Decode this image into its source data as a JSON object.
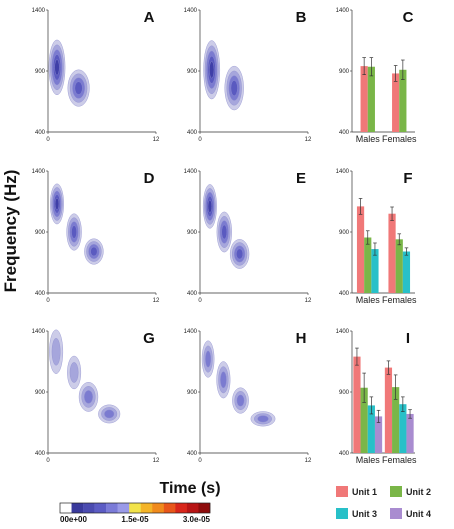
{
  "figure": {
    "ylabel": "Frequency (Hz)",
    "xlabel": "Time (s)",
    "colorbar_labels": [
      "00e+00",
      "1.5e-05",
      "3.0e-05"
    ],
    "colorbar_colors": [
      "#ffffff",
      "#3a3a9c",
      "#4b4bb0",
      "#5c5cc4",
      "#7b7bd8",
      "#9a9ae8",
      "#f2e34a",
      "#f4b428",
      "#f08a1c",
      "#e8561a",
      "#d8261a",
      "#b81414",
      "#8e0c0c"
    ],
    "contour_colors": [
      "#cccce8",
      "#a6a6dc",
      "#7b7bd0",
      "#5a5ac0",
      "#3f3fa8"
    ],
    "unit_colors": {
      "Unit 1": "#f07878",
      "Unit 2": "#7ab648",
      "Unit 3": "#28c0c8",
      "Unit 4": "#a98cd0"
    }
  },
  "legend": [
    {
      "label": "Unit 1",
      "color": "#f07878"
    },
    {
      "label": "Unit 2",
      "color": "#7ab648"
    },
    {
      "label": "Unit 3",
      "color": "#28c0c8"
    },
    {
      "label": "Unit 4",
      "color": "#a98cd0"
    }
  ],
  "chart_data": [
    {
      "panel": "A",
      "type": "heatmap",
      "xlim": [
        0,
        12
      ],
      "ylim": [
        400,
        1400
      ],
      "xticks": [
        "0",
        "12"
      ],
      "yticks": [
        "400",
        "900",
        "1400"
      ],
      "blobs": [
        {
          "t": 1.0,
          "f": 930,
          "st": 0.6,
          "sf": 150,
          "amp": 5
        },
        {
          "t": 3.4,
          "f": 760,
          "st": 0.8,
          "sf": 100,
          "amp": 4
        }
      ]
    },
    {
      "panel": "B",
      "type": "heatmap",
      "xlim": [
        0,
        12
      ],
      "ylim": [
        400,
        1400
      ],
      "xticks": [
        "0",
        "12"
      ],
      "yticks": [
        "400",
        "900",
        "1400"
      ],
      "blobs": [
        {
          "t": 1.3,
          "f": 910,
          "st": 0.6,
          "sf": 160,
          "amp": 5
        },
        {
          "t": 3.8,
          "f": 760,
          "st": 0.7,
          "sf": 120,
          "amp": 4
        }
      ]
    },
    {
      "panel": "C",
      "type": "bar",
      "categories": [
        "Males",
        "Females"
      ],
      "ylim": [
        400,
        1400
      ],
      "yticks": [
        "400",
        "900",
        "1400"
      ],
      "series": [
        {
          "name": "Unit 1",
          "values": [
            940,
            880
          ],
          "err": [
            70,
            65
          ]
        },
        {
          "name": "Unit 2",
          "values": [
            935,
            910
          ],
          "err": [
            75,
            80
          ]
        }
      ]
    },
    {
      "panel": "D",
      "type": "heatmap",
      "xlim": [
        0,
        12
      ],
      "ylim": [
        400,
        1400
      ],
      "xticks": [
        "0",
        "12"
      ],
      "yticks": [
        "400",
        "900",
        "1400"
      ],
      "blobs": [
        {
          "t": 1.0,
          "f": 1130,
          "st": 0.5,
          "sf": 110,
          "amp": 5
        },
        {
          "t": 2.9,
          "f": 900,
          "st": 0.55,
          "sf": 100,
          "amp": 4
        },
        {
          "t": 5.1,
          "f": 740,
          "st": 0.7,
          "sf": 70,
          "amp": 4
        }
      ]
    },
    {
      "panel": "E",
      "type": "heatmap",
      "xlim": [
        0,
        12
      ],
      "ylim": [
        400,
        1400
      ],
      "xticks": [
        "0",
        "12"
      ],
      "yticks": [
        "400",
        "900",
        "1400"
      ],
      "blobs": [
        {
          "t": 1.1,
          "f": 1110,
          "st": 0.5,
          "sf": 120,
          "amp": 5
        },
        {
          "t": 2.7,
          "f": 900,
          "st": 0.55,
          "sf": 110,
          "amp": 4
        },
        {
          "t": 4.4,
          "f": 720,
          "st": 0.7,
          "sf": 80,
          "amp": 4
        }
      ]
    },
    {
      "panel": "F",
      "type": "bar",
      "categories": [
        "Males",
        "Females"
      ],
      "ylim": [
        400,
        1400
      ],
      "yticks": [
        "400",
        "900",
        "1400"
      ],
      "series": [
        {
          "name": "Unit 1",
          "values": [
            1110,
            1050
          ],
          "err": [
            65,
            55
          ]
        },
        {
          "name": "Unit 2",
          "values": [
            855,
            840
          ],
          "err": [
            55,
            45
          ]
        },
        {
          "name": "Unit 3",
          "values": [
            760,
            740
          ],
          "err": [
            50,
            30
          ]
        }
      ]
    },
    {
      "panel": "G",
      "type": "heatmap",
      "xlim": [
        0,
        12
      ],
      "ylim": [
        400,
        1400
      ],
      "xticks": [
        "0",
        "12"
      ],
      "yticks": [
        "400",
        "900",
        "1400"
      ],
      "blobs": [
        {
          "t": 0.9,
          "f": 1230,
          "st": 0.5,
          "sf": 120,
          "amp": 2
        },
        {
          "t": 2.9,
          "f": 1060,
          "st": 0.5,
          "sf": 90,
          "amp": 2
        },
        {
          "t": 4.5,
          "f": 860,
          "st": 0.7,
          "sf": 80,
          "amp": 3
        },
        {
          "t": 6.8,
          "f": 720,
          "st": 0.8,
          "sf": 50,
          "amp": 3
        }
      ]
    },
    {
      "panel": "H",
      "type": "heatmap",
      "xlim": [
        0,
        12
      ],
      "ylim": [
        400,
        1400
      ],
      "xticks": [
        "0",
        "12"
      ],
      "yticks": [
        "400",
        "900",
        "1400"
      ],
      "blobs": [
        {
          "t": 0.9,
          "f": 1170,
          "st": 0.45,
          "sf": 100,
          "amp": 3
        },
        {
          "t": 2.6,
          "f": 1000,
          "st": 0.5,
          "sf": 100,
          "amp": 3
        },
        {
          "t": 4.5,
          "f": 830,
          "st": 0.6,
          "sf": 70,
          "amp": 3
        },
        {
          "t": 7.0,
          "f": 680,
          "st": 0.9,
          "sf": 40,
          "amp": 3
        }
      ]
    },
    {
      "panel": "I",
      "type": "bar",
      "categories": [
        "Males",
        "Females"
      ],
      "ylim": [
        400,
        1400
      ],
      "yticks": [
        "400",
        "900",
        "1400"
      ],
      "series": [
        {
          "name": "Unit 1",
          "values": [
            1190,
            1100
          ],
          "err": [
            70,
            55
          ]
        },
        {
          "name": "Unit 2",
          "values": [
            935,
            940
          ],
          "err": [
            120,
            100
          ]
        },
        {
          "name": "Unit 3",
          "values": [
            790,
            800
          ],
          "err": [
            70,
            60
          ]
        },
        {
          "name": "Unit 4",
          "values": [
            700,
            720
          ],
          "err": [
            50,
            35
          ]
        }
      ]
    }
  ]
}
